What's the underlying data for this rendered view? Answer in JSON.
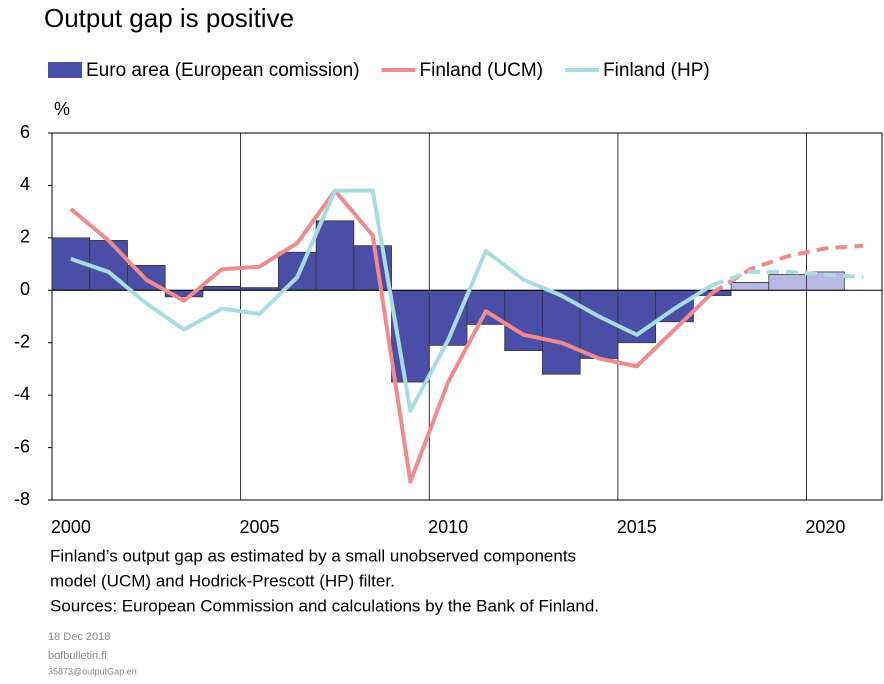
{
  "chart_data": {
    "type": "bar_line",
    "title": "Output gap is positive",
    "y_unit": "%",
    "categories": [
      "2000",
      null,
      null,
      null,
      null,
      "2005",
      null,
      null,
      null,
      null,
      "2010",
      null,
      null,
      null,
      null,
      "2015",
      null,
      null,
      null,
      null,
      "2020",
      null
    ],
    "series": [
      {
        "name": "Euro area (European comission)",
        "kind": "bar",
        "color": "#4a4ea6",
        "forecast_color": "#b7b9e3",
        "values": [
          2.0,
          1.9,
          0.95,
          -0.25,
          0.15,
          0.1,
          1.45,
          2.65,
          1.7,
          -3.5,
          -2.1,
          -1.3,
          -2.3,
          -3.2,
          -2.6,
          -2.0,
          -1.2,
          -0.2,
          0.3,
          0.6,
          0.7,
          null
        ]
      },
      {
        "name": "Finland (UCM)",
        "kind": "line",
        "color": "#f08a8f",
        "values": [
          3.1,
          1.9,
          0.4,
          -0.4,
          0.8,
          0.9,
          1.8,
          3.8,
          2.1,
          -7.3,
          -3.5,
          -0.8,
          -1.7,
          -2.0,
          -2.6,
          -2.9,
          -1.5,
          -0.1,
          0.8,
          1.3,
          1.6,
          1.7
        ]
      },
      {
        "name": "Finland (HP)",
        "kind": "line",
        "color": "#a8dde0",
        "values": [
          1.2,
          0.7,
          -0.5,
          -1.5,
          -0.7,
          -0.9,
          0.5,
          3.8,
          3.8,
          -4.6,
          -1.9,
          1.5,
          0.4,
          -0.2,
          -1.0,
          -1.7,
          -0.7,
          0.2,
          0.7,
          0.7,
          0.6,
          0.5
        ]
      }
    ],
    "forecast_start_index": 17,
    "ylim": [
      -8,
      6
    ],
    "yticks": [
      -8,
      -6,
      -4,
      -2,
      0,
      2,
      4,
      6
    ],
    "notes": [
      "Finland’s output gap as estimated by a small unobserved components",
      "model (UCM) and Hodrick-Prescott (HP) filter.",
      "Sources: European Commission and calculations by the Bank of Finland."
    ],
    "footer": [
      "18 Dec 2018",
      "bofbulletin.fi",
      "35873@outputGap en"
    ]
  }
}
